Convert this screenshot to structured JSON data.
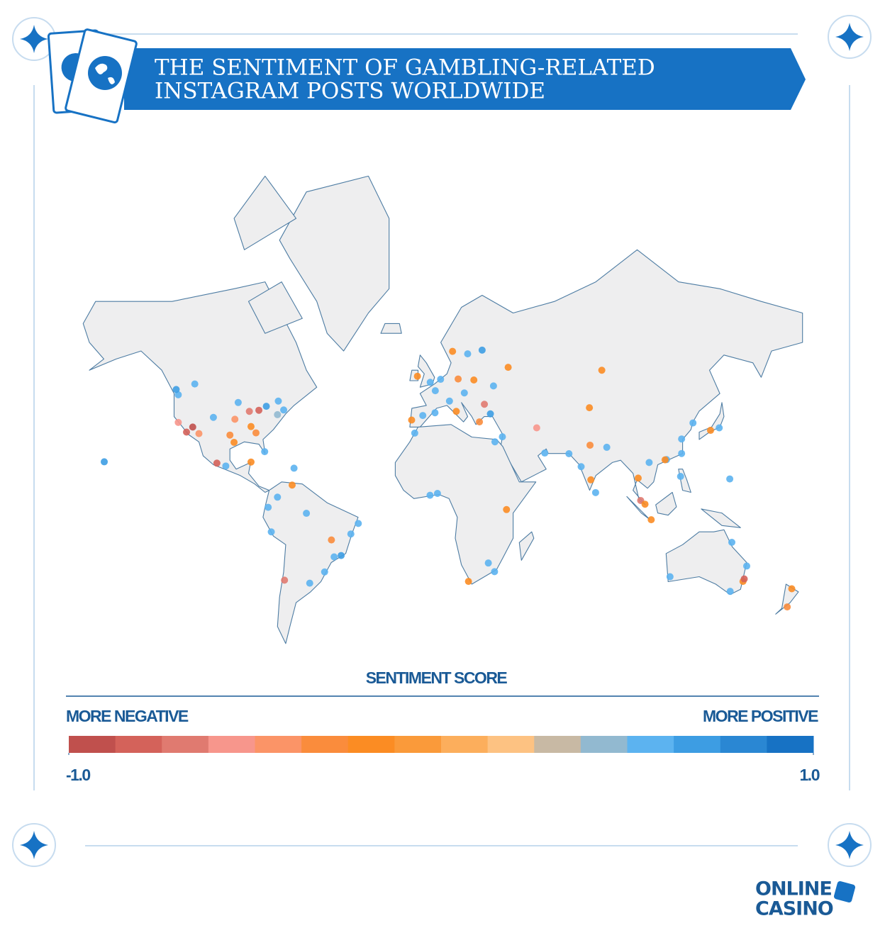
{
  "header": {
    "title": [
      "THE SENTIMENT OF GAMBLING-RELATED",
      "INSTAGRAM POSTS WORLDWIDE"
    ]
  },
  "map": {
    "points": [
      {
        "lon": -115,
        "lat": 36,
        "score": -0.9
      },
      {
        "lon": -118,
        "lat": 34,
        "score": -0.8
      },
      {
        "lon": -122,
        "lat": 37.8,
        "score": -0.6
      },
      {
        "lon": -122,
        "lat": 47.6,
        "score": 0.5
      },
      {
        "lon": -112,
        "lat": 33.4,
        "score": -0.4
      },
      {
        "lon": -105,
        "lat": 39.7,
        "score": 0.6
      },
      {
        "lon": -97,
        "lat": 32.8,
        "score": -0.3
      },
      {
        "lon": -95,
        "lat": 29.8,
        "score": -0.2
      },
      {
        "lon": -87.6,
        "lat": 41.9,
        "score": -0.7
      },
      {
        "lon": -83,
        "lat": 42.3,
        "score": -0.8
      },
      {
        "lon": -74,
        "lat": 40.7,
        "score": 0.4
      },
      {
        "lon": -84.4,
        "lat": 33.7,
        "score": -0.3
      },
      {
        "lon": -80.2,
        "lat": 25.8,
        "score": 0.5
      },
      {
        "lon": -71,
        "lat": 42.4,
        "score": 0.6
      },
      {
        "lon": -93,
        "lat": 45,
        "score": 0.5
      },
      {
        "lon": -94.6,
        "lat": 39,
        "score": -0.5
      },
      {
        "lon": -86.8,
        "lat": 36.2,
        "score": -0.2
      },
      {
        "lon": -79.4,
        "lat": 43.7,
        "score": 0.7
      },
      {
        "lon": -73.6,
        "lat": 45.5,
        "score": 0.6
      },
      {
        "lon": -123,
        "lat": 49.3,
        "score": 0.7
      },
      {
        "lon": -114,
        "lat": 51,
        "score": 0.6
      },
      {
        "lon": -99,
        "lat": 19.4,
        "score": 0.6
      },
      {
        "lon": -103.3,
        "lat": 20.7,
        "score": -0.8
      },
      {
        "lon": -86.8,
        "lat": 21.2,
        "score": -0.2
      },
      {
        "lon": -157.8,
        "lat": 21.3,
        "score": 0.7
      },
      {
        "lon": -66,
        "lat": 18.4,
        "score": 0.6
      },
      {
        "lon": -74,
        "lat": 4.7,
        "score": 0.5
      },
      {
        "lon": -66.9,
        "lat": 10.5,
        "score": -0.2
      },
      {
        "lon": -77,
        "lat": -12,
        "score": 0.5
      },
      {
        "lon": -78.5,
        "lat": -0.2,
        "score": 0.6
      },
      {
        "lon": -70.6,
        "lat": -33.4,
        "score": -0.7
      },
      {
        "lon": -58.4,
        "lat": -34.6,
        "score": 0.6
      },
      {
        "lon": -46.6,
        "lat": -23.5,
        "score": 0.6
      },
      {
        "lon": -43.2,
        "lat": -22.9,
        "score": 0.7
      },
      {
        "lon": -47.9,
        "lat": -15.8,
        "score": -0.3
      },
      {
        "lon": -34.9,
        "lat": -8,
        "score": 0.6
      },
      {
        "lon": -38.5,
        "lat": -13,
        "score": 0.5
      },
      {
        "lon": -60,
        "lat": -3.1,
        "score": 0.6
      },
      {
        "lon": -51.2,
        "lat": -30,
        "score": 0.6
      },
      {
        "lon": -0.1,
        "lat": 51.5,
        "score": 0.5
      },
      {
        "lon": -6.3,
        "lat": 53.3,
        "score": -0.2
      },
      {
        "lon": 2.35,
        "lat": 48.9,
        "score": 0.6
      },
      {
        "lon": -3.7,
        "lat": 40.4,
        "score": 0.6
      },
      {
        "lon": -9.1,
        "lat": 38.7,
        "score": -0.2
      },
      {
        "lon": 2.2,
        "lat": 41.4,
        "score": 0.5
      },
      {
        "lon": 12.5,
        "lat": 41.9,
        "score": -0.2
      },
      {
        "lon": 9.2,
        "lat": 45.5,
        "score": 0.5
      },
      {
        "lon": 13.4,
        "lat": 52.5,
        "score": -0.3
      },
      {
        "lon": 4.9,
        "lat": 52.4,
        "score": 0.6
      },
      {
        "lon": 18,
        "lat": 59.3,
        "score": 0.6
      },
      {
        "lon": 10.7,
        "lat": 59.9,
        "score": -0.2
      },
      {
        "lon": 25,
        "lat": 60.2,
        "score": 0.7
      },
      {
        "lon": 21,
        "lat": 52.2,
        "score": -0.2
      },
      {
        "lon": 16.4,
        "lat": 48.2,
        "score": 0.5
      },
      {
        "lon": 23.7,
        "lat": 38,
        "score": -0.3
      },
      {
        "lon": 29,
        "lat": 41,
        "score": 0.7
      },
      {
        "lon": 37.6,
        "lat": 55.8,
        "score": -0.2
      },
      {
        "lon": 30.5,
        "lat": 50.4,
        "score": 0.6
      },
      {
        "lon": 26.1,
        "lat": 44.4,
        "score": -0.7
      },
      {
        "lon": 34.8,
        "lat": 32.1,
        "score": 0.6
      },
      {
        "lon": 55.3,
        "lat": 25.2,
        "score": 0.6
      },
      {
        "lon": 31.2,
        "lat": 30,
        "score": 0.5
      },
      {
        "lon": 51.4,
        "lat": 35.7,
        "score": -0.6
      },
      {
        "lon": 67,
        "lat": 24.9,
        "score": 0.6
      },
      {
        "lon": 77.2,
        "lat": 28.6,
        "score": -0.3
      },
      {
        "lon": 72.9,
        "lat": 19.1,
        "score": 0.6
      },
      {
        "lon": 77.6,
        "lat": 13,
        "score": -0.2
      },
      {
        "lon": 79.9,
        "lat": 6.9,
        "score": 0.6
      },
      {
        "lon": 85.3,
        "lat": 27.7,
        "score": 0.6
      },
      {
        "lon": 76.9,
        "lat": 43.2,
        "score": -0.2
      },
      {
        "lon": 82.9,
        "lat": 55,
        "score": -0.2
      },
      {
        "lon": 100.5,
        "lat": 13.8,
        "score": -0.2
      },
      {
        "lon": 101.7,
        "lat": 3.1,
        "score": -0.7
      },
      {
        "lon": 103.8,
        "lat": 1.3,
        "score": -0.2
      },
      {
        "lon": 106.8,
        "lat": -6.2,
        "score": -0.2
      },
      {
        "lon": 121,
        "lat": 14.6,
        "score": 0.6
      },
      {
        "lon": 114.2,
        "lat": 22.3,
        "score": 0.6
      },
      {
        "lon": 113.5,
        "lat": 22.2,
        "score": -0.2
      },
      {
        "lon": 121.5,
        "lat": 31.2,
        "score": 0.5
      },
      {
        "lon": 127,
        "lat": 37.6,
        "score": 0.6
      },
      {
        "lon": 139.7,
        "lat": 35.7,
        "score": 0.6
      },
      {
        "lon": 135.5,
        "lat": 34.7,
        "score": -0.2
      },
      {
        "lon": 121.5,
        "lat": 25,
        "score": 0.6
      },
      {
        "lon": 144.8,
        "lat": 13.4,
        "score": 0.6
      },
      {
        "lon": 105.8,
        "lat": 21,
        "score": 0.5
      },
      {
        "lon": 3.4,
        "lat": 6.5,
        "score": 0.6
      },
      {
        "lon": 36.8,
        "lat": -1.3,
        "score": -0.2
      },
      {
        "lon": 28,
        "lat": -26.2,
        "score": 0.6
      },
      {
        "lon": 18.4,
        "lat": -33.9,
        "score": -0.2
      },
      {
        "lon": 31,
        "lat": -29.9,
        "score": 0.6
      },
      {
        "lon": -7.6,
        "lat": 33.6,
        "score": 0.6
      },
      {
        "lon": -0.2,
        "lat": 5.6,
        "score": 0.6
      },
      {
        "lon": 151.2,
        "lat": -33.9,
        "score": -0.2
      },
      {
        "lon": 145,
        "lat": -37.8,
        "score": 0.6
      },
      {
        "lon": 153,
        "lat": -27.5,
        "score": 0.6
      },
      {
        "lon": 151.8,
        "lat": -32.9,
        "score": -0.8
      },
      {
        "lon": 115.9,
        "lat": -32,
        "score": 0.6
      },
      {
        "lon": 174.8,
        "lat": -36.8,
        "score": -0.2
      },
      {
        "lon": 172.6,
        "lat": -43.5,
        "score": -0.3
      },
      {
        "lon": 145.8,
        "lat": -16.9,
        "score": 0.6
      }
    ]
  },
  "legend": {
    "title": "SENTIMENT SCORE",
    "left_label": "MORE NEGATIVE",
    "right_label": "MORE POSITIVE",
    "range": [
      -1,
      1
    ],
    "ticks": [
      {
        "value": -1,
        "label": "-1.0"
      },
      {
        "value": 1,
        "label": "1.0"
      }
    ],
    "colors": [
      "#c0504d",
      "#d4625a",
      "#e07a70",
      "#f7968c",
      "#fb9467",
      "#fa8c3c",
      "#fb8c23",
      "#fa9a3a",
      "#fcae5c",
      "#fdc282",
      "#c8b9a4",
      "#92b9d0",
      "#5cb3f0",
      "#3d9de3",
      "#2a87d3",
      "#1772c4"
    ]
  },
  "logo": {
    "line1": "ONLINE",
    "line2": "CASINO"
  }
}
